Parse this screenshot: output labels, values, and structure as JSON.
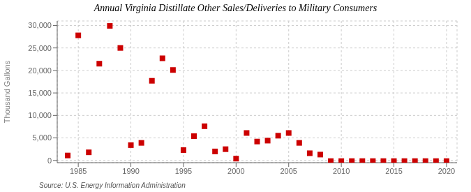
{
  "chart_data": {
    "type": "scatter",
    "title": "Annual Virginia Distillate Other Sales/Deliveries to Military Consumers",
    "ylabel": "Thousand Gallons",
    "annotations": [
      "Source: U.S. Energy Information Administration"
    ],
    "x": [
      1984,
      1985,
      1986,
      1987,
      1988,
      1989,
      1990,
      1991,
      1992,
      1993,
      1994,
      1995,
      1996,
      1997,
      1998,
      1999,
      2000,
      2001,
      2002,
      2003,
      2004,
      2005,
      2006,
      2007,
      2008,
      2009,
      2010,
      2011,
      2012,
      2013,
      2014,
      2015,
      2016,
      2017,
      2018,
      2019,
      2020
    ],
    "values": [
      1100,
      27800,
      1800,
      21500,
      29900,
      25000,
      3400,
      3900,
      17700,
      22700,
      20100,
      2300,
      5400,
      7600,
      2000,
      2500,
      400,
      6100,
      4200,
      4400,
      5500,
      6100,
      3900,
      1600,
      1300,
      -150,
      -150,
      -150,
      -150,
      -150,
      -150,
      -150,
      -150,
      -150,
      -150,
      -150,
      -150
    ],
    "color": "#cc0000",
    "marker": "square",
    "xlim": [
      1983,
      2021
    ],
    "ylim": [
      -500,
      31000
    ],
    "xticks": [
      1985,
      1990,
      1995,
      2000,
      2005,
      2010,
      2015,
      2020
    ],
    "yticks": [
      0,
      {
        "value": 5000,
        "label": "5,000"
      },
      {
        "value": 10000,
        "label": "10,000"
      },
      {
        "value": 15000,
        "label": "15,000"
      },
      {
        "value": 20000,
        "label": "20,000"
      },
      {
        "value": 25000,
        "label": "25,000"
      },
      {
        "value": 30000,
        "label": "30,000"
      }
    ],
    "grid": true
  }
}
